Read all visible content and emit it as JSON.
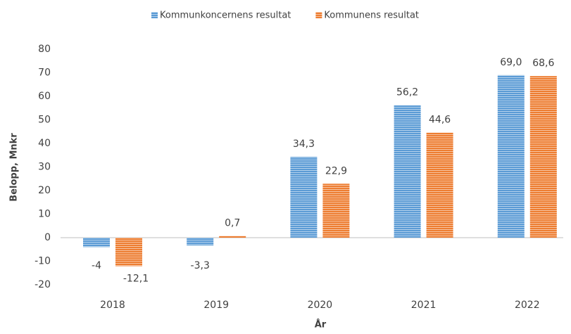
{
  "chart_data": {
    "type": "bar",
    "x_label": "År",
    "y_label": "Belopp, Mnkr",
    "categories": [
      "2018",
      "2019",
      "2020",
      "2021",
      "2022"
    ],
    "series": [
      {
        "name": "Kommunkoncernens resultat",
        "color": "#5b9bd5",
        "values": [
          -4,
          -3.3,
          34.3,
          56.2,
          69.0
        ],
        "value_labels": [
          "-4",
          "-3,3",
          "34,3",
          "56,2",
          "69,0"
        ]
      },
      {
        "name": "Kommunens resultat",
        "color": "#ed7d31",
        "values": [
          -12.1,
          0.7,
          22.9,
          44.6,
          68.6
        ],
        "value_labels": [
          "-12,1",
          "0,7",
          "22,9",
          "44,6",
          "68,6"
        ]
      }
    ],
    "ylim": [
      -20,
      80
    ],
    "yticks": [
      -20,
      -10,
      0,
      10,
      20,
      30,
      40,
      50,
      60,
      70,
      80
    ],
    "legend": "top"
  }
}
